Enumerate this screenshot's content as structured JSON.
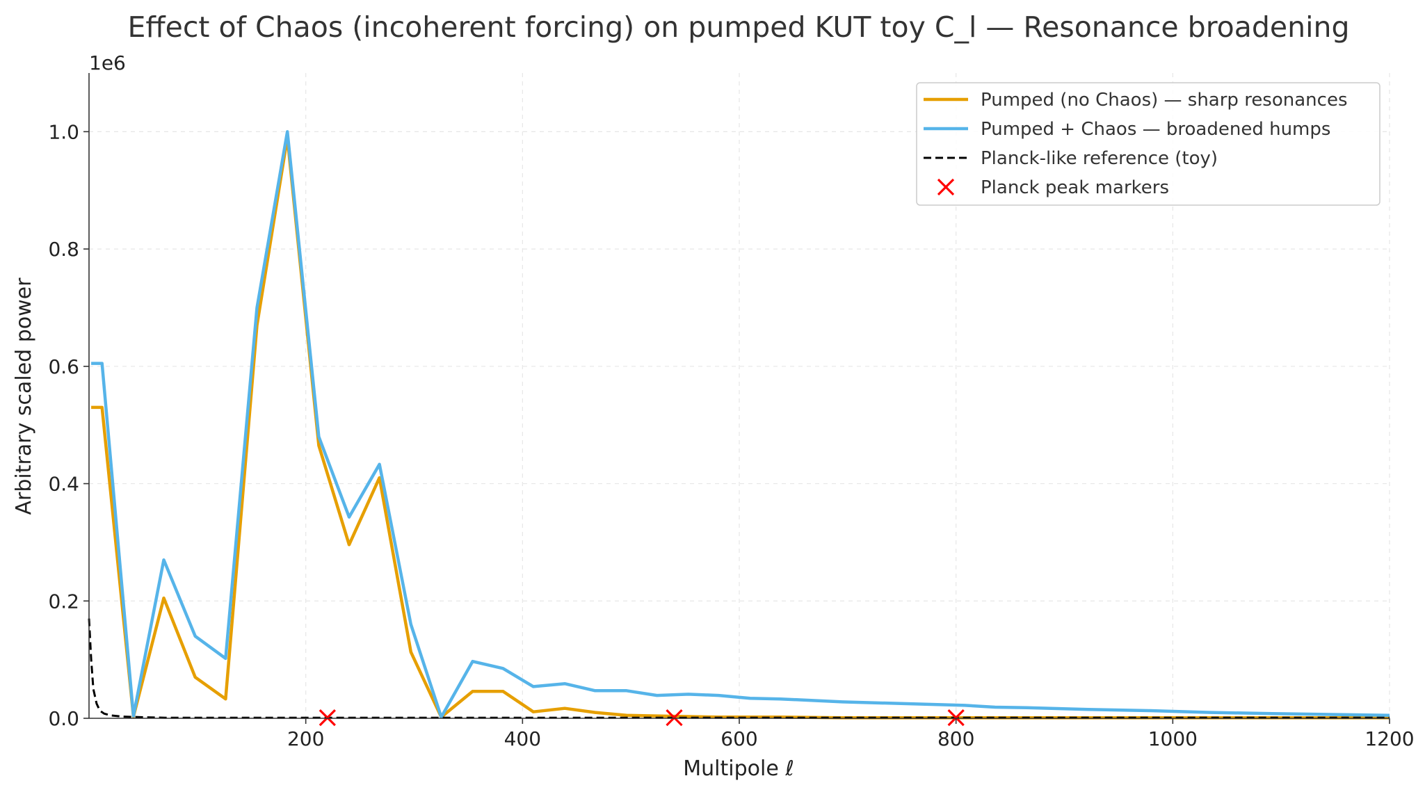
{
  "chart_data": {
    "type": "line",
    "title": "Effect of Chaos (incoherent forcing) on pumped KUT toy C_l — Resonance broadening",
    "xlabel": "Multipole ℓ",
    "ylabel": "Arbitrary scaled power",
    "y_offset_label": "1e6",
    "xlim": [
      0,
      1200
    ],
    "ylim": [
      0,
      1.1
    ],
    "x_ticks": [
      200,
      400,
      600,
      800,
      1000,
      1200
    ],
    "x_tick_labels": [
      "200",
      "400",
      "600",
      "800",
      "1000",
      "1200"
    ],
    "y_ticks": [
      0,
      0.2,
      0.4,
      0.6,
      0.8,
      1.0
    ],
    "y_tick_labels": [
      "0.0",
      "0.2",
      "0.4",
      "0.6",
      "0.8",
      "1.0"
    ],
    "grid": true,
    "legend_position": "top-right",
    "series": [
      {
        "name": "Pumped (no Chaos) — sharp resonances",
        "color": "#E69F00",
        "style": "solid",
        "x": [
          2,
          12,
          41,
          69,
          98,
          126,
          155,
          183,
          212,
          240,
          268,
          297,
          325,
          354,
          382,
          410,
          439,
          467,
          496,
          524,
          553,
          581,
          610,
          638,
          695,
          752,
          808,
          865,
          922,
          979,
          1035,
          1092,
          1200
        ],
        "y": [
          0.53,
          0.53,
          0.003,
          0.205,
          0.07,
          0.033,
          0.67,
          0.99,
          0.465,
          0.296,
          0.41,
          0.113,
          0.002,
          0.046,
          0.046,
          0.011,
          0.017,
          0.01,
          0.005,
          0.004,
          0.003,
          0.002,
          0.002,
          0.002,
          0.001,
          0.001,
          0.001,
          0.001,
          0.001,
          0.001,
          0.001,
          0.001,
          0.001
        ]
      },
      {
        "name": "Pumped + Chaos — broadened humps",
        "color": "#56B4E9",
        "style": "solid",
        "x": [
          2,
          12,
          41,
          69,
          98,
          126,
          155,
          183,
          212,
          240,
          268,
          297,
          325,
          354,
          382,
          410,
          439,
          467,
          496,
          524,
          553,
          581,
          610,
          638,
          695,
          752,
          808,
          836,
          865,
          922,
          979,
          1035,
          1092,
          1200
        ],
        "y": [
          0.605,
          0.605,
          0.004,
          0.27,
          0.14,
          0.102,
          0.7,
          1.0,
          0.48,
          0.343,
          0.433,
          0.16,
          0.002,
          0.097,
          0.085,
          0.054,
          0.059,
          0.047,
          0.047,
          0.039,
          0.041,
          0.039,
          0.034,
          0.033,
          0.028,
          0.025,
          0.022,
          0.019,
          0.018,
          0.015,
          0.013,
          0.01,
          0.008,
          0.005
        ]
      },
      {
        "name": "Planck-like reference (toy)",
        "color": "#000000",
        "style": "dashed",
        "x": [
          0,
          2,
          4,
          7,
          10,
          14,
          20,
          30,
          45,
          70,
          120,
          200,
          400,
          800,
          1200
        ],
        "y": [
          0.17,
          0.1,
          0.05,
          0.025,
          0.013,
          0.008,
          0.005,
          0.003,
          0.002,
          0.001,
          0.001,
          0.001,
          0.001,
          0.001,
          0.001
        ]
      }
    ],
    "markers": {
      "name": "Planck peak markers",
      "color": "#FF0000",
      "symbol": "x",
      "x": [
        220,
        540,
        800
      ],
      "y": [
        0.001,
        0.001,
        0.001
      ]
    }
  }
}
